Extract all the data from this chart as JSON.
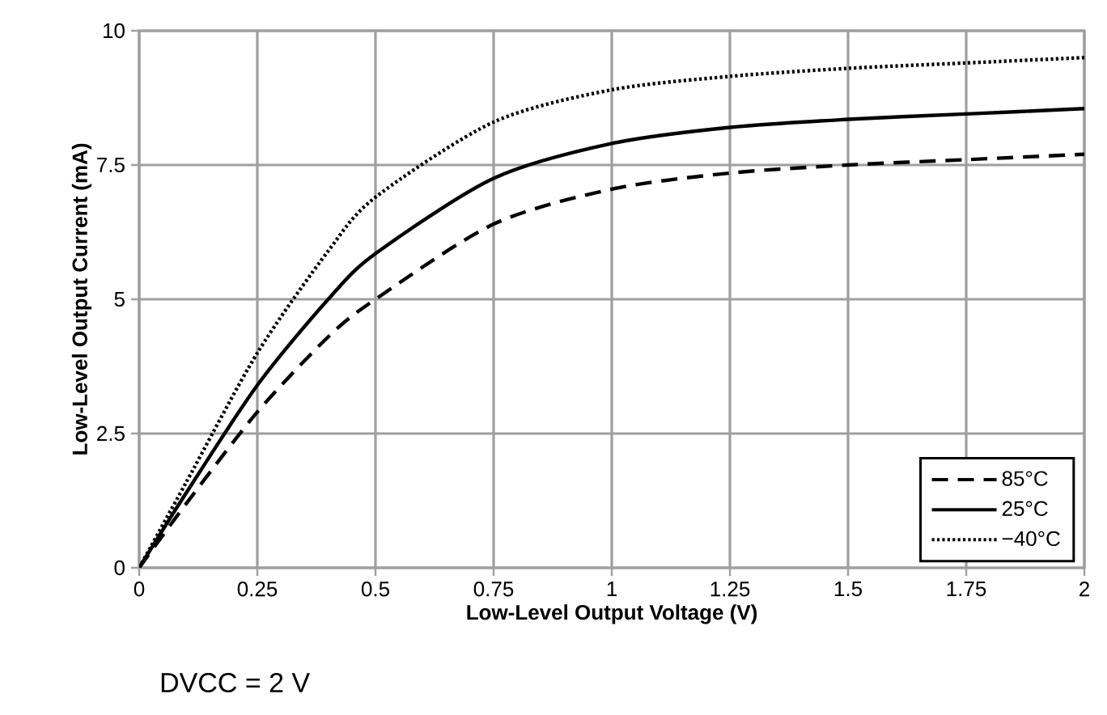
{
  "chart_data": {
    "type": "line",
    "xlabel": "Low-Level Output Voltage (V)",
    "ylabel": "Low-Level Output Current (mA)",
    "x": [
      0,
      0.1,
      0.25,
      0.4,
      0.5,
      0.75,
      1,
      1.25,
      1.5,
      1.75,
      2
    ],
    "series": [
      {
        "name": "85°C",
        "color": "#000000",
        "line_style": "dashed",
        "values": [
          0,
          1.2,
          2.9,
          4.3,
          5.0,
          6.4,
          7.05,
          7.35,
          7.5,
          7.6,
          7.7
        ]
      },
      {
        "name": "25°C",
        "color": "#000000",
        "line_style": "solid",
        "values": [
          0,
          1.4,
          3.4,
          5.0,
          5.85,
          7.25,
          7.9,
          8.2,
          8.35,
          8.45,
          8.55
        ]
      },
      {
        "name": "−40°C",
        "color": "#000000",
        "line_style": "dotted",
        "values": [
          0,
          1.6,
          4.0,
          5.9,
          6.9,
          8.3,
          8.9,
          9.15,
          9.3,
          9.4,
          9.5
        ]
      }
    ],
    "xlim": [
      0,
      2
    ],
    "ylim": [
      0,
      10
    ],
    "xticks": [
      0,
      0.25,
      0.5,
      0.75,
      1,
      1.25,
      1.5,
      1.75,
      2
    ],
    "yticks": [
      0,
      2.5,
      5,
      7.5,
      10
    ],
    "grid": true,
    "legend": "bottom right",
    "annotations": [
      "DVCC = 2 V"
    ]
  }
}
